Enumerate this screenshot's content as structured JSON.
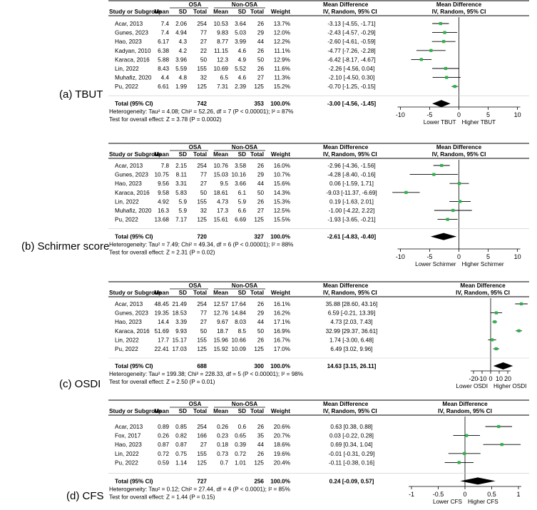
{
  "panel_labels": [
    "(a) TBUT",
    "(b) Schirmer score",
    "(c) OSDI",
    "(d) CFS"
  ],
  "headers": {
    "group1": "OSA",
    "group2": "Non-OSA",
    "study_col": "Study or Subgroup",
    "mean": "Mean",
    "sd": "SD",
    "total": "Total",
    "weight": "Weight",
    "md_title": "Mean Difference",
    "md_sub": "IV, Random, 95% CI",
    "total_label": "Total (95% CI)"
  },
  "chart_data": [
    {
      "type": "forest",
      "rows": [
        {
          "study": "Acar, 2013",
          "m1": "7.4",
          "sd1": "2.06",
          "n1": "254",
          "m2": "10.53",
          "sd2": "3.64",
          "n2": "26",
          "weight": "13.7%",
          "ci": "-3.13 [-4.55, -1.71]",
          "est": -3.13,
          "lo": -4.55,
          "hi": -1.71
        },
        {
          "study": "Gunes, 2023",
          "m1": "7.4",
          "sd1": "4.94",
          "n1": "77",
          "m2": "9.83",
          "sd2": "5.03",
          "n2": "29",
          "weight": "12.0%",
          "ci": "-2.43 [-4.57, -0.29]",
          "est": -2.43,
          "lo": -4.57,
          "hi": -0.29
        },
        {
          "study": "Hao, 2023",
          "m1": "6.17",
          "sd1": "4.3",
          "n1": "27",
          "m2": "8.77",
          "sd2": "3.99",
          "n2": "44",
          "weight": "12.2%",
          "ci": "-2.60 [-4.61, -0.59]",
          "est": -2.6,
          "lo": -4.61,
          "hi": -0.59
        },
        {
          "study": "Kadyan, 2010",
          "m1": "6.38",
          "sd1": "4.2",
          "n1": "22",
          "m2": "11.15",
          "sd2": "4.6",
          "n2": "26",
          "weight": "11.1%",
          "ci": "-4.77 [-7.26, -2.28]",
          "est": -4.77,
          "lo": -7.26,
          "hi": -2.28
        },
        {
          "study": "Karaca, 2016",
          "m1": "5.88",
          "sd1": "3.96",
          "n1": "50",
          "m2": "12.3",
          "sd2": "4.9",
          "n2": "50",
          "weight": "12.9%",
          "ci": "-6.42 [-8.17, -4.67]",
          "est": -6.42,
          "lo": -8.17,
          "hi": -4.67
        },
        {
          "study": "Lin, 2022",
          "m1": "8.43",
          "sd1": "5.59",
          "n1": "155",
          "m2": "10.69",
          "sd2": "5.52",
          "n2": "26",
          "weight": "11.6%",
          "ci": "-2.26 [-4.56, 0.04]",
          "est": -2.26,
          "lo": -4.56,
          "hi": 0.04
        },
        {
          "study": "Muhafiz, 2020",
          "m1": "4.4",
          "sd1": "4.8",
          "n1": "32",
          "m2": "6.5",
          "sd2": "4.6",
          "n2": "27",
          "weight": "11.3%",
          "ci": "-2.10 [-4.50, 0.30]",
          "est": -2.1,
          "lo": -4.5,
          "hi": 0.3
        },
        {
          "study": "Pu, 2022",
          "m1": "6.61",
          "sd1": "1.99",
          "n1": "125",
          "m2": "7.31",
          "sd2": "2.39",
          "n2": "125",
          "weight": "15.2%",
          "ci": "-0.70 [-1.25, -0.15]",
          "est": -0.7,
          "lo": -1.25,
          "hi": -0.15
        }
      ],
      "total": {
        "n1": "742",
        "n2": "353",
        "weight": "100.0%",
        "ci": "-3.00 [-4.56, -1.45]",
        "est": -3.0,
        "lo": -4.56,
        "hi": -1.45
      },
      "heterogeneity": "Heterogeneity: Tau² = 4.08; Chi² = 52.26, df = 7 (P < 0.00001); I² = 87%",
      "overall_effect": "Test for overall effect: Z = 3.78 (P = 0.0002)",
      "axis": {
        "xlim": [
          -12,
          12
        ],
        "ticks": [
          -10,
          -5,
          0,
          5,
          10
        ],
        "tick_labels": [
          "-10",
          "-5",
          "0",
          "5",
          "10"
        ]
      },
      "favours_left": "Lower TBUT",
      "favours_right": "Higher TBUT"
    },
    {
      "type": "forest",
      "rows": [
        {
          "study": "Acar, 2013",
          "m1": "7.8",
          "sd1": "2.15",
          "n1": "254",
          "m2": "10.76",
          "sd2": "3.58",
          "n2": "26",
          "weight": "16.0%",
          "ci": "-2.96 [-4.36, -1.56]",
          "est": -2.96,
          "lo": -4.36,
          "hi": -1.56
        },
        {
          "study": "Gunes, 2023",
          "m1": "10.75",
          "sd1": "8.11",
          "n1": "77",
          "m2": "15.03",
          "sd2": "10.16",
          "n2": "29",
          "weight": "10.7%",
          "ci": "-4.28 [-8.40, -0.16]",
          "est": -4.28,
          "lo": -8.4,
          "hi": -0.16
        },
        {
          "study": "Hao, 2023",
          "m1": "9.56",
          "sd1": "3.31",
          "n1": "27",
          "m2": "9.5",
          "sd2": "3.66",
          "n2": "44",
          "weight": "15.6%",
          "ci": "0.06 [-1.59, 1.71]",
          "est": 0.06,
          "lo": -1.59,
          "hi": 1.71
        },
        {
          "study": "Karaca, 2016",
          "m1": "9.58",
          "sd1": "5.83",
          "n1": "50",
          "m2": "18.61",
          "sd2": "6.1",
          "n2": "50",
          "weight": "14.3%",
          "ci": "-9.03 [-11.37, -6.69]",
          "est": -9.03,
          "lo": -11.37,
          "hi": -6.69
        },
        {
          "study": "Lin, 2022",
          "m1": "4.92",
          "sd1": "5.9",
          "n1": "155",
          "m2": "4.73",
          "sd2": "5.9",
          "n2": "26",
          "weight": "15.3%",
          "ci": "0.19 [-1.63, 2.01]",
          "est": 0.19,
          "lo": -1.63,
          "hi": 2.01
        },
        {
          "study": "Muhafiz, 2020",
          "m1": "16.3",
          "sd1": "5.9",
          "n1": "32",
          "m2": "17.3",
          "sd2": "6.6",
          "n2": "27",
          "weight": "12.5%",
          "ci": "-1.00 [-4.22, 2.22]",
          "est": -1.0,
          "lo": -4.22,
          "hi": 2.22
        },
        {
          "study": "Pu, 2022",
          "m1": "13.68",
          "sd1": "7.17",
          "n1": "125",
          "m2": "15.61",
          "sd2": "6.69",
          "n2": "125",
          "weight": "15.5%",
          "ci": "-1.93 [-3.65, -0.21]",
          "est": -1.93,
          "lo": -3.65,
          "hi": -0.21
        }
      ],
      "total": {
        "n1": "720",
        "n2": "327",
        "weight": "100.0%",
        "ci": "-2.61 [-4.83, -0.40]",
        "est": -2.61,
        "lo": -4.83,
        "hi": -0.4
      },
      "heterogeneity": "Heterogeneity: Tau² = 7.49; Chi² = 49.34, df = 6 (P < 0.00001); I² = 88%",
      "overall_effect": "Test for overall effect: Z = 2.31 (P = 0.02)",
      "axis": {
        "xlim": [
          -12,
          12
        ],
        "ticks": [
          -10,
          -5,
          0,
          5,
          10
        ],
        "tick_labels": [
          "-10",
          "-5",
          "0",
          "5",
          "10"
        ]
      },
      "favours_left": "Lower Schirmer",
      "favours_right": "Higher Schirmer"
    },
    {
      "type": "forest",
      "rows": [
        {
          "study": "Acar, 2013",
          "m1": "48.45",
          "sd1": "21.49",
          "n1": "254",
          "m2": "12.57",
          "sd2": "17.64",
          "n2": "26",
          "weight": "16.1%",
          "ci": "35.88 [28.60, 43.16]",
          "est": 35.88,
          "lo": 28.6,
          "hi": 43.16
        },
        {
          "study": "Gunes, 2023",
          "m1": "19.35",
          "sd1": "18.53",
          "n1": "77",
          "m2": "12.76",
          "sd2": "14.84",
          "n2": "29",
          "weight": "16.2%",
          "ci": "6.59 [-0.21, 13.39]",
          "est": 6.59,
          "lo": -0.21,
          "hi": 13.39
        },
        {
          "study": "Hao, 2023",
          "m1": "14.4",
          "sd1": "3.39",
          "n1": "27",
          "m2": "9.67",
          "sd2": "8.03",
          "n2": "44",
          "weight": "17.1%",
          "ci": "4.73 [2.03, 7.43]",
          "est": 4.73,
          "lo": 2.03,
          "hi": 7.43
        },
        {
          "study": "Karaca, 2016",
          "m1": "51.69",
          "sd1": "9.93",
          "n1": "50",
          "m2": "18.7",
          "sd2": "8.5",
          "n2": "50",
          "weight": "16.9%",
          "ci": "32.99 [29.37, 36.61]",
          "est": 32.99,
          "lo": 29.37,
          "hi": 36.61
        },
        {
          "study": "Lin, 2022",
          "m1": "17.7",
          "sd1": "15.17",
          "n1": "155",
          "m2": "15.96",
          "sd2": "10.66",
          "n2": "26",
          "weight": "16.7%",
          "ci": "1.74 [-3.00, 6.48]",
          "est": 1.74,
          "lo": -3.0,
          "hi": 6.48
        },
        {
          "study": "Pu, 2022",
          "m1": "22.41",
          "sd1": "17.03",
          "n1": "125",
          "m2": "15.92",
          "sd2": "10.09",
          "n2": "125",
          "weight": "17.0%",
          "ci": "6.49 [3.02, 9.96]",
          "est": 6.49,
          "lo": 3.02,
          "hi": 9.96
        }
      ],
      "total": {
        "n1": "688",
        "n2": "300",
        "weight": "100.0%",
        "ci": "14.63 [3.15, 26.11]",
        "est": 14.63,
        "lo": 3.15,
        "hi": 26.11
      },
      "heterogeneity": "Heterogeneity: Tau² = 199.38; Chi² = 228.33, df = 5 (P < 0.00001); I² = 98%",
      "overall_effect": "Test for overall effect: Z = 2.50 (P = 0.01)",
      "axis": {
        "xlim": [
          -30,
          45
        ],
        "ticks": [
          -20,
          -10,
          0,
          10,
          20
        ],
        "tick_labels": [
          "-20",
          "-10",
          "0",
          "10",
          "20"
        ]
      },
      "favours_left": "Lower OSDI",
      "favours_right": "Higher OSDI"
    },
    {
      "type": "forest",
      "rows": [
        {
          "study": "Acar, 2013",
          "m1": "0.89",
          "sd1": "0.85",
          "n1": "254",
          "m2": "0.26",
          "sd2": "0.6",
          "n2": "26",
          "weight": "20.6%",
          "ci": "0.63 [0.38, 0.88]",
          "est": 0.63,
          "lo": 0.38,
          "hi": 0.88
        },
        {
          "study": "Fox, 2017",
          "m1": "0.26",
          "sd1": "0.82",
          "n1": "166",
          "m2": "0.23",
          "sd2": "0.65",
          "n2": "35",
          "weight": "20.7%",
          "ci": "0.03 [-0.22, 0.28]",
          "est": 0.03,
          "lo": -0.22,
          "hi": 0.28
        },
        {
          "study": "Hao, 2023",
          "m1": "0.87",
          "sd1": "0.87",
          "n1": "27",
          "m2": "0.18",
          "sd2": "0.39",
          "n2": "44",
          "weight": "18.6%",
          "ci": "0.69 [0.34, 1.04]",
          "est": 0.69,
          "lo": 0.34,
          "hi": 1.04
        },
        {
          "study": "Lin, 2022",
          "m1": "0.72",
          "sd1": "0.75",
          "n1": "155",
          "m2": "0.73",
          "sd2": "0.72",
          "n2": "26",
          "weight": "19.6%",
          "ci": "-0.01 [-0.31, 0.29]",
          "est": -0.01,
          "lo": -0.31,
          "hi": 0.29
        },
        {
          "study": "Pu, 2022",
          "m1": "0.59",
          "sd1": "1.14",
          "n1": "125",
          "m2": "0.7",
          "sd2": "1.01",
          "n2": "125",
          "weight": "20.4%",
          "ci": "-0.11 [-0.38, 0.16]",
          "est": -0.11,
          "lo": -0.38,
          "hi": 0.16
        }
      ],
      "total": {
        "n1": "727",
        "n2": "256",
        "weight": "100.0%",
        "ci": "0.24 [-0.09, 0.57]",
        "est": 0.24,
        "lo": -0.09,
        "hi": 0.57
      },
      "heterogeneity": "Heterogeneity: Tau² = 0.12; Chi² = 27.44, df = 4 (P < 0.0001); I² = 85%",
      "overall_effect": "Test for overall effect: Z = 1.44 (P = 0.15)",
      "axis": {
        "xlim": [
          -1.2,
          1.2
        ],
        "ticks": [
          -1,
          -0.5,
          0,
          0.5,
          1
        ],
        "tick_labels": [
          "-1",
          "-0.5",
          "0",
          "0.5",
          "1"
        ]
      },
      "favours_left": "Lower CFS",
      "favours_right": "Higher CFS"
    }
  ]
}
